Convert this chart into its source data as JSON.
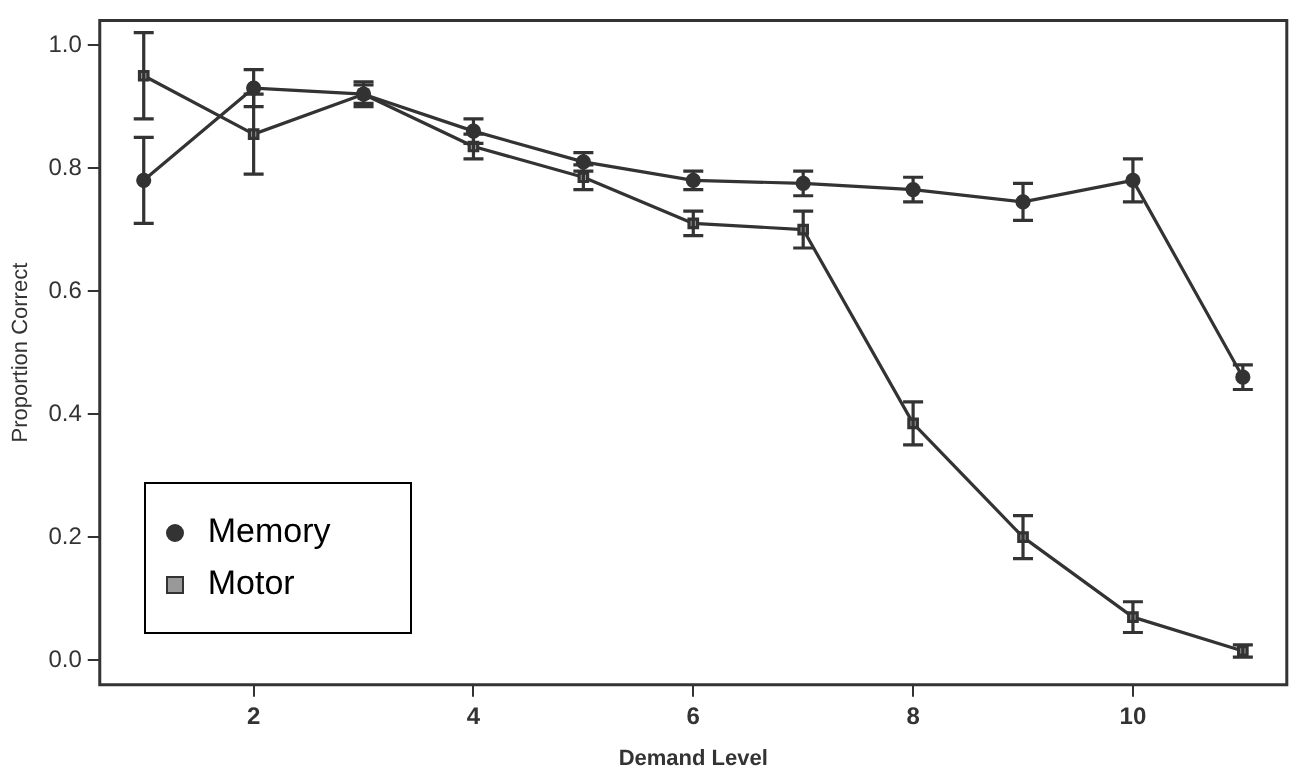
{
  "chart_data": {
    "type": "line",
    "xlabel": "Demand Level",
    "ylabel": "Proportion Correct",
    "x": [
      1,
      2,
      3,
      4,
      5,
      6,
      7,
      8,
      9,
      10,
      11
    ],
    "series": [
      {
        "name": "Memory",
        "color": "#333333",
        "marker": "circle",
        "values": [
          0.78,
          0.93,
          0.92,
          0.86,
          0.81,
          0.78,
          0.775,
          0.765,
          0.745,
          0.78,
          0.46
        ],
        "errors": [
          0.07,
          0.03,
          0.02,
          0.02,
          0.015,
          0.015,
          0.02,
          0.02,
          0.03,
          0.035,
          0.02
        ]
      },
      {
        "name": "Motor",
        "color": "#333333",
        "marker": "square",
        "values": [
          0.95,
          0.855,
          0.92,
          0.835,
          0.785,
          0.71,
          0.7,
          0.385,
          0.2,
          0.07,
          0.015
        ],
        "errors": [
          0.07,
          0.065,
          0.015,
          0.02,
          0.02,
          0.02,
          0.03,
          0.035,
          0.035,
          0.025,
          0.01
        ]
      }
    ],
    "xlim": [
      0.6,
      11.4
    ],
    "xticks": [
      2,
      4,
      6,
      8,
      10
    ],
    "ylim": [
      -0.04,
      1.04
    ],
    "yticks": [
      {
        "value": 0,
        "label": "0.0"
      },
      {
        "value": 0.2,
        "label": "0.2"
      },
      {
        "value": 0.4,
        "label": "0.4"
      },
      {
        "value": 0.6,
        "label": "0.6"
      },
      {
        "value": 0.8,
        "label": "0.8"
      },
      {
        "value": 1,
        "label": "1.0"
      }
    ],
    "grid": false,
    "legend": "bottom left",
    "line_style": "solid"
  }
}
